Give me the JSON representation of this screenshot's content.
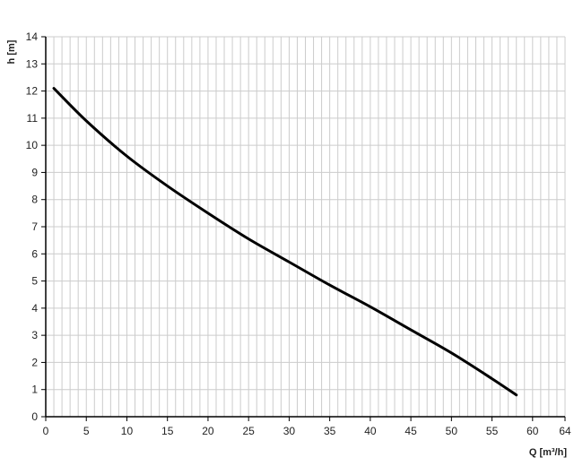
{
  "chart_data": {
    "type": "line",
    "title": "",
    "xlabel": "Q [m³/h]",
    "ylabel": "h [m]",
    "xlim": [
      0,
      64
    ],
    "ylim": [
      0,
      14
    ],
    "xticks": [
      0,
      5,
      10,
      15,
      20,
      25,
      30,
      35,
      40,
      45,
      50,
      55,
      60,
      64
    ],
    "yticks": [
      0,
      1,
      2,
      3,
      4,
      5,
      6,
      7,
      8,
      9,
      10,
      11,
      12,
      13,
      14
    ],
    "grid": true,
    "line_color": "#000000",
    "grid_color": "#cccccc",
    "series": [
      {
        "x": [
          1,
          5,
          10,
          15,
          20,
          25,
          30,
          35,
          40,
          45,
          50,
          55,
          58
        ],
        "y": [
          12.1,
          10.9,
          9.6,
          8.5,
          7.5,
          6.55,
          5.7,
          4.85,
          4.05,
          3.2,
          2.35,
          1.4,
          0.8
        ]
      }
    ]
  }
}
